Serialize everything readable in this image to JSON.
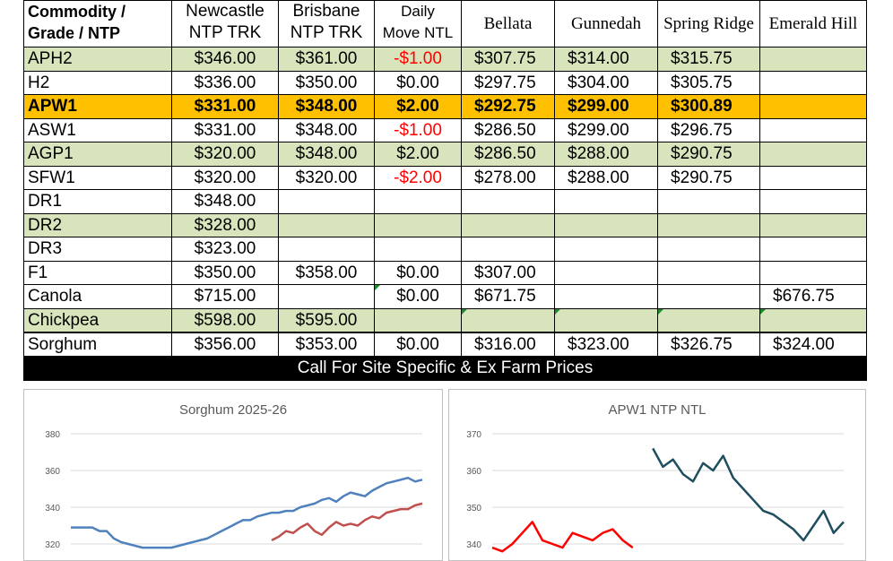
{
  "table": {
    "headers": {
      "commodity": [
        "Commodity /",
        "Grade / NTP"
      ],
      "newcastle": [
        "Newcastle",
        "NTP TRK"
      ],
      "brisbane": [
        "Brisbane",
        "NTP TRK"
      ],
      "daily": [
        "Daily",
        "Move NTL"
      ],
      "bellata": "Bellata",
      "gunnedah": "Gunnedah",
      "spring_ridge": "Spring Ridge",
      "emerald_hill": "Emerald Hill"
    },
    "rows": [
      {
        "grade": "APH2",
        "newcastle": "$346.00",
        "brisbane": "$361.00",
        "daily": "-$1.00",
        "bellata": "$307.75",
        "gunnedah": "$314.00",
        "spring_ridge": "$315.75",
        "emerald_hill": ""
      },
      {
        "grade": "H2",
        "newcastle": "$336.00",
        "brisbane": "$350.00",
        "daily": "$0.00",
        "bellata": "$297.75",
        "gunnedah": "$304.00",
        "spring_ridge": "$305.75",
        "emerald_hill": ""
      },
      {
        "grade": "APW1",
        "newcastle": "$331.00",
        "brisbane": "$348.00",
        "daily": "$2.00",
        "bellata": "$292.75",
        "gunnedah": "$299.00",
        "spring_ridge": "$300.89",
        "emerald_hill": ""
      },
      {
        "grade": "ASW1",
        "newcastle": "$331.00",
        "brisbane": "$348.00",
        "daily": "-$1.00",
        "bellata": "$286.50",
        "gunnedah": "$299.00",
        "spring_ridge": "$296.75",
        "emerald_hill": ""
      },
      {
        "grade": "AGP1",
        "newcastle": "$320.00",
        "brisbane": "$348.00",
        "daily": "$2.00",
        "bellata": "$286.50",
        "gunnedah": "$288.00",
        "spring_ridge": "$290.75",
        "emerald_hill": ""
      },
      {
        "grade": "SFW1",
        "newcastle": "$320.00",
        "brisbane": "$320.00",
        "daily": "-$2.00",
        "bellata": "$278.00",
        "gunnedah": "$288.00",
        "spring_ridge": "$290.75",
        "emerald_hill": ""
      },
      {
        "grade": "DR1",
        "newcastle": "$348.00",
        "brisbane": "",
        "daily": "",
        "bellata": "",
        "gunnedah": "",
        "spring_ridge": "",
        "emerald_hill": ""
      },
      {
        "grade": "DR2",
        "newcastle": "$328.00",
        "brisbane": "",
        "daily": "",
        "bellata": "",
        "gunnedah": "",
        "spring_ridge": "",
        "emerald_hill": ""
      },
      {
        "grade": "DR3",
        "newcastle": "$323.00",
        "brisbane": "",
        "daily": "",
        "bellata": "",
        "gunnedah": "",
        "spring_ridge": "",
        "emerald_hill": ""
      },
      {
        "grade": "F1",
        "newcastle": "$350.00",
        "brisbane": "$358.00",
        "daily": "$0.00",
        "bellata": "$307.00",
        "gunnedah": "",
        "spring_ridge": "",
        "emerald_hill": ""
      },
      {
        "grade": "Canola",
        "newcastle": "$715.00",
        "brisbane": "",
        "daily": "$0.00",
        "bellata": "$671.75",
        "gunnedah": "",
        "spring_ridge": "",
        "emerald_hill": "$676.75"
      },
      {
        "grade": "Chickpea",
        "newcastle": "$598.00",
        "brisbane": "$595.00",
        "daily": "",
        "bellata": "",
        "gunnedah": "",
        "spring_ridge": "",
        "emerald_hill": ""
      },
      {
        "grade": "Sorghum",
        "newcastle": "$356.00",
        "brisbane": "$353.00",
        "daily": "$0.00",
        "bellata": "$316.00",
        "gunnedah": "$323.00",
        "spring_ridge": "$326.75",
        "emerald_hill": "$324.00"
      }
    ],
    "banner": "Call For Site Specific & Ex Farm Prices"
  },
  "colors": {
    "shade": "#d8e4bc",
    "highlight": "#ffc000",
    "negative": "#ff0000",
    "sorghum_series_1": "#4f81bd",
    "sorghum_series_2": "#c0504d",
    "apw1_series_1": "#ff0000",
    "apw1_series_2": "#1f4e5f"
  },
  "chart_data": [
    {
      "type": "line",
      "title": "Sorghum 2025-26",
      "xlabel": "",
      "ylabel": "",
      "yticks": [
        "380",
        "360",
        "340",
        "320"
      ],
      "ylim": [
        316,
        380
      ],
      "grid": true,
      "x": [
        1,
        2,
        3,
        4,
        5,
        6,
        7,
        8,
        9,
        10,
        11,
        12,
        13,
        14,
        15,
        16,
        17,
        18,
        19,
        20,
        21,
        22,
        23,
        24,
        25,
        26,
        27,
        28,
        29,
        30,
        31,
        32,
        33,
        34,
        35,
        36,
        37,
        38,
        39,
        40,
        41,
        42,
        43,
        44,
        45,
        46,
        47,
        48,
        49,
        50
      ],
      "series": [
        {
          "values": [
            329,
            329,
            329,
            329,
            327,
            327,
            323,
            321,
            320,
            319,
            318,
            318,
            318,
            318,
            318,
            319,
            320,
            321,
            322,
            323,
            325,
            327,
            329,
            331,
            333,
            333,
            335,
            336,
            337,
            337,
            338,
            338,
            340,
            341,
            342,
            344,
            345,
            343,
            346,
            348,
            347,
            346,
            349,
            351,
            353,
            354,
            355,
            356,
            354,
            355
          ]
        },
        {
          "values": [
            null,
            null,
            null,
            null,
            null,
            null,
            null,
            null,
            null,
            null,
            null,
            null,
            null,
            null,
            null,
            null,
            null,
            null,
            null,
            null,
            null,
            null,
            null,
            null,
            null,
            null,
            null,
            null,
            322,
            324,
            327,
            326,
            329,
            331,
            327,
            325,
            329,
            332,
            330,
            331,
            330,
            333,
            335,
            334,
            337,
            338,
            339,
            339,
            341,
            342
          ]
        }
      ]
    },
    {
      "type": "line",
      "title": "APW1 NTP NTL",
      "xlabel": "",
      "ylabel": "",
      "yticks": [
        "370",
        "360",
        "350",
        "340"
      ],
      "ylim": [
        337,
        370
      ],
      "grid": true,
      "x": [
        1,
        2,
        3,
        4,
        5,
        6,
        7,
        8,
        9,
        10,
        11,
        12,
        13,
        14,
        15,
        16,
        17,
        18,
        19,
        20,
        21,
        22,
        23,
        24,
        25,
        26,
        27,
        28,
        29,
        30,
        31,
        32,
        33,
        34,
        35,
        36
      ],
      "series": [
        {
          "values": [
            339,
            338,
            340,
            343,
            346,
            341,
            340,
            339,
            343,
            342,
            341,
            343,
            344,
            341,
            339,
            null,
            null,
            null,
            null,
            null,
            null,
            null,
            null,
            null,
            null,
            null,
            null,
            null,
            null,
            null,
            null,
            null,
            null,
            null,
            null,
            null
          ]
        },
        {
          "values": [
            null,
            null,
            null,
            null,
            null,
            null,
            null,
            null,
            null,
            null,
            null,
            null,
            null,
            null,
            null,
            null,
            366,
            361,
            363,
            359,
            357,
            362,
            360,
            364,
            358,
            355,
            352,
            349,
            348,
            346,
            344,
            341,
            345,
            349,
            343,
            346
          ]
        }
      ]
    }
  ]
}
